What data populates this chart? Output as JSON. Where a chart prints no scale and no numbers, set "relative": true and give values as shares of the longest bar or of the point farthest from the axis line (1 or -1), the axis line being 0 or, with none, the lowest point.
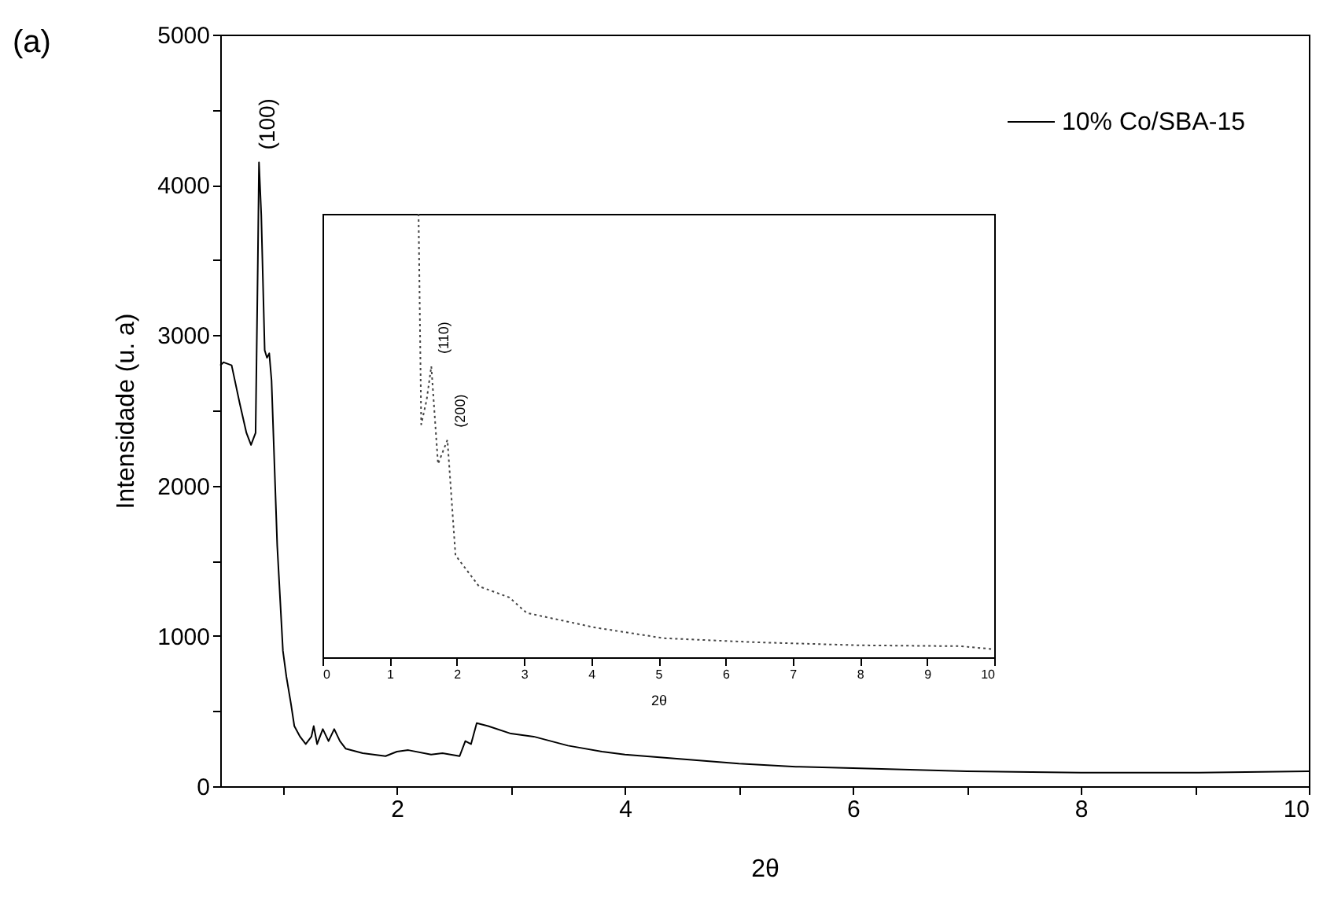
{
  "chart_data": [
    {
      "type": "line",
      "title": "(a)",
      "xlabel": "2θ",
      "ylabel": "Intensidade (u. a)",
      "xlim": [
        0.45,
        10
      ],
      "ylim": [
        0,
        5000
      ],
      "xticks": [
        {
          "value": 1,
          "label": null
        },
        2,
        {
          "value": 3,
          "label": null
        },
        4,
        {
          "value": 5,
          "label": null
        },
        6,
        {
          "value": 7,
          "label": null
        },
        8,
        {
          "value": 9,
          "label": null
        },
        10
      ],
      "yticks": [
        0,
        {
          "value": 500,
          "label": null
        },
        1000,
        {
          "value": 1500,
          "label": null
        },
        2000,
        {
          "value": 2500,
          "label": null
        },
        3000,
        {
          "value": 3500,
          "label": null
        },
        4000,
        {
          "value": 4500,
          "label": null
        },
        5000
      ],
      "grid": false,
      "legend": "top right",
      "line_style": "solid",
      "annotations": [
        {
          "text": "(100)",
          "x": 0.79,
          "y": 4150
        }
      ],
      "series": [
        {
          "name": "10% Co/SBA-15",
          "color": "#000000",
          "x": [
            0.45,
            0.48,
            0.55,
            0.62,
            0.68,
            0.72,
            0.76,
            0.78,
            0.79,
            0.81,
            0.84,
            0.86,
            0.88,
            0.9,
            0.95,
            1.0,
            1.03,
            1.07,
            1.1,
            1.15,
            1.2,
            1.25,
            1.27,
            1.3,
            1.35,
            1.4,
            1.45,
            1.5,
            1.55,
            1.7,
            1.9,
            2.0,
            2.1,
            2.3,
            2.4,
            2.55,
            2.6,
            2.65,
            2.7,
            2.8,
            3.0,
            3.2,
            3.5,
            3.8,
            4.0,
            4.5,
            5.0,
            5.5,
            6.0,
            7.0,
            8.0,
            9.0,
            10.0
          ],
          "values": [
            2800,
            2820,
            2800,
            2550,
            2350,
            2270,
            2350,
            3500,
            4150,
            3800,
            2900,
            2850,
            2880,
            2700,
            1600,
            900,
            730,
            550,
            400,
            330,
            280,
            330,
            400,
            280,
            380,
            300,
            380,
            300,
            250,
            220,
            200,
            230,
            240,
            210,
            220,
            200,
            300,
            280,
            420,
            400,
            350,
            330,
            270,
            230,
            210,
            180,
            150,
            130,
            120,
            100,
            90,
            90,
            100
          ]
        }
      ]
    },
    {
      "type": "line",
      "relative": true,
      "xlabel": "2θ",
      "xlim": [
        0,
        10
      ],
      "xticks": [
        0,
        1,
        2,
        3,
        4,
        5,
        6,
        7,
        8,
        9,
        10
      ],
      "grid": false,
      "line_style": "dotted",
      "annotations": [
        {
          "text": "(110)",
          "x": 1.62,
          "y": 0.656
        },
        {
          "text": "(200)",
          "x": 1.86,
          "y": 0.49
        }
      ],
      "series": [
        {
          "color": "#444444",
          "x": [
            1.43,
            1.47,
            1.55,
            1.62,
            1.72,
            1.86,
            1.98,
            2.33,
            2.78,
            3.04,
            4.06,
            5.08,
            6.42,
            8.0,
            9.5,
            10.0
          ],
          "values": [
            1.0,
            0.525,
            0.58,
            0.656,
            0.436,
            0.49,
            0.23,
            0.16,
            0.135,
            0.1,
            0.067,
            0.043,
            0.034,
            0.027,
            0.025,
            0.018
          ]
        }
      ]
    }
  ]
}
